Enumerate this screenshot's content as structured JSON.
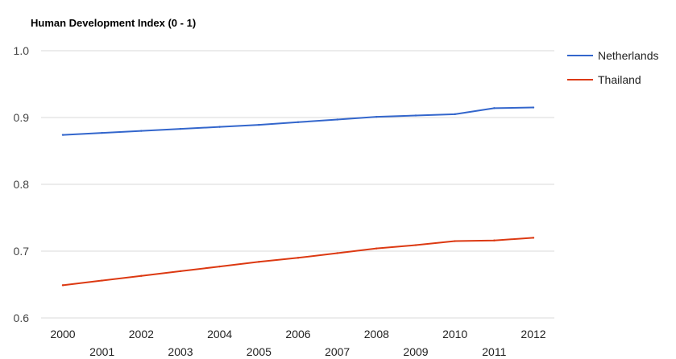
{
  "chart_data": {
    "type": "line",
    "title": "Human Development Index (0 - 1)",
    "xlabel": "",
    "ylabel": "",
    "x": [
      2000,
      2001,
      2002,
      2003,
      2004,
      2005,
      2006,
      2007,
      2008,
      2009,
      2010,
      2011,
      2012
    ],
    "x_tick_labels": [
      "2000",
      "2001",
      "2002",
      "2003",
      "2004",
      "2005",
      "2006",
      "2007",
      "2008",
      "2009",
      "2010",
      "2011",
      "2012"
    ],
    "y_tick_labels": [
      "0.6",
      "0.7",
      "0.8",
      "0.9",
      "1.0"
    ],
    "y_ticks": [
      0.6,
      0.7,
      0.8,
      0.9,
      1.0
    ],
    "ylim": [
      0.6,
      1.0
    ],
    "xlim": [
      2000,
      2012
    ],
    "grid": true,
    "legend_position": "right",
    "series": [
      {
        "name": "Netherlands",
        "color": "#3366cc",
        "values": [
          0.874,
          0.877,
          0.88,
          0.883,
          0.886,
          0.889,
          0.893,
          0.897,
          0.901,
          0.903,
          0.905,
          0.914,
          0.915
        ]
      },
      {
        "name": "Thailand",
        "color": "#dc3912",
        "values": [
          0.649,
          0.656,
          0.663,
          0.67,
          0.677,
          0.684,
          0.69,
          0.697,
          0.704,
          0.709,
          0.715,
          0.716,
          0.72
        ]
      }
    ]
  }
}
